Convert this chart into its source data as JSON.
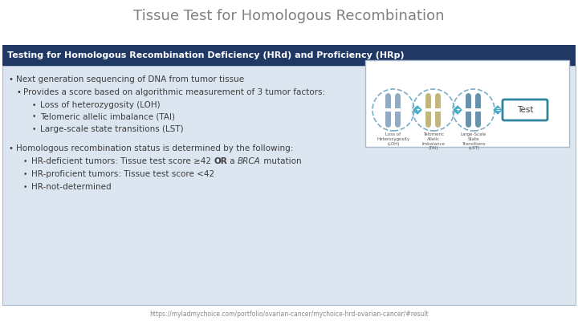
{
  "title": "Tissue Test for Homologous Recombination",
  "title_color": "#808080",
  "title_fontsize": 13,
  "header_text": "Testing for Homologous Recombination Deficiency (HRd) and Proficiency (HRp)",
  "header_bg": "#1f3864",
  "header_text_color": "#ffffff",
  "body_bg": "#dce6f1",
  "slide_bg": "#ffffff",
  "bullet1": "Next generation sequencing of DNA from tumor tissue",
  "bullet2": "Provides a score based on algorithmic measurement of 3 tumor factors:",
  "sub_bullet1": "Loss of heterozygosity (LOH)",
  "sub_bullet2": "Telomeric allelic imbalance (TAI)",
  "sub_bullet3": "Large-scale state transitions (LST)",
  "bullet3": "Homologous recombination status is determined by the following:",
  "sub_bullet4a": "HR-deficient tumors: Tissue test score ≥42 ",
  "sub_bullet4b": "OR",
  "sub_bullet4c": " a ",
  "sub_bullet4d": "BRCA",
  "sub_bullet4e": " mutation",
  "sub_bullet5": "HR-proficient tumors: Tissue test score <42",
  "sub_bullet6": "HR-not-determined",
  "footer": "https://myladmychoice.com/portfolio/ovarian-cancer/mychoice-hrd-ovarian-cancer/#result",
  "footer_color": "#888888",
  "footer_fontsize": 5.5,
  "body_text_fontsize": 7.5,
  "header_fontsize": 8,
  "teal_color": "#31849b",
  "teal_light": "#4bacc6",
  "diagram_bg": "#f2f7fa",
  "diagram_border": "#31849b",
  "chr_color1": "#7f9db9",
  "chr_color2": "#b8a96a",
  "chr_color3": "#4f7f9b",
  "body_text_color": "#3c3c3c"
}
